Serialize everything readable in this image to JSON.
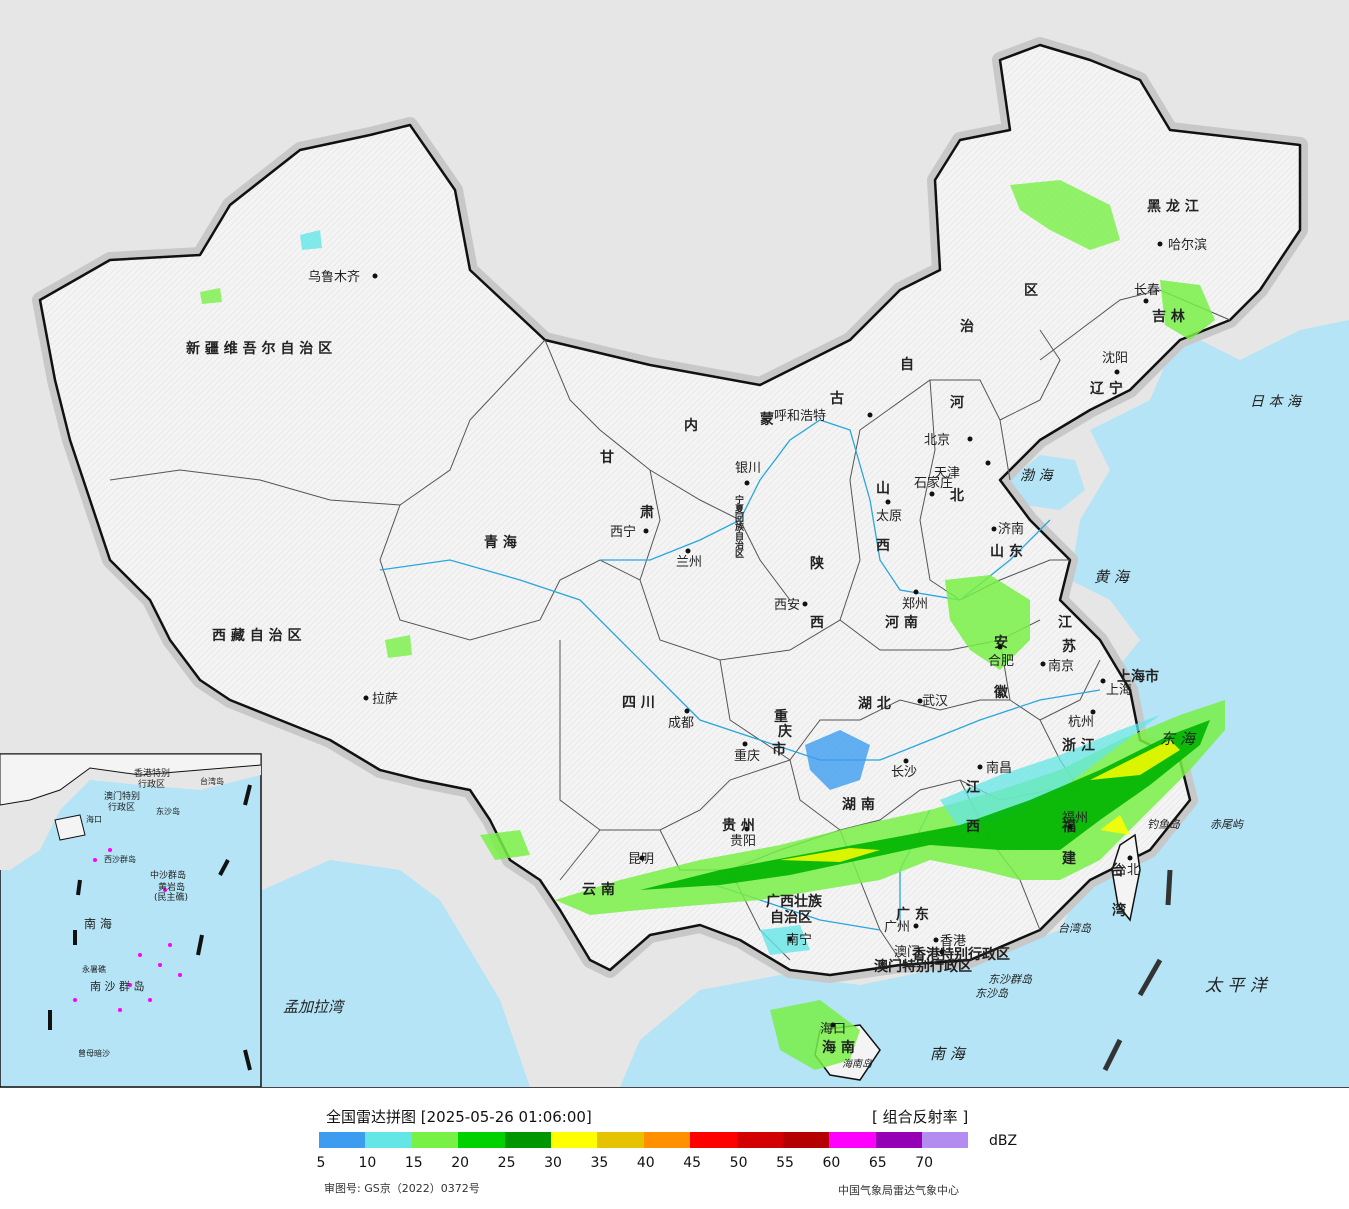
{
  "title": "全国雷达拼图 [2025-05-26 01:06:00]",
  "product": "[ 组合反射率 ]",
  "unit": "dBZ",
  "approval": "审图号: GS京（2022）0372号",
  "source": "中国气象局雷达气象中心",
  "colors": {
    "ocean": "#b4e4f5",
    "land_china": "#f4f4f4",
    "land_foreign": "#e6e6e6",
    "border": "#111111"
  },
  "scale": {
    "colors": [
      "#3c9cf0",
      "#64e6e6",
      "#78f046",
      "#00d200",
      "#009600",
      "#ffff00",
      "#e6c300",
      "#ff9100",
      "#ff0000",
      "#d20000",
      "#b40000",
      "#ff00ff",
      "#9600b4",
      "#b48cf0"
    ],
    "ticks": [
      "5",
      "10",
      "15",
      "20",
      "25",
      "30",
      "35",
      "40",
      "45",
      "50",
      "55",
      "60",
      "65",
      "70"
    ]
  },
  "provinces": [
    {
      "name": "新 疆 维 吾 尔 自 治 区"
    },
    {
      "name": "西 藏 自 治 区"
    },
    {
      "name": "青   海"
    },
    {
      "name": "甘"
    },
    {
      "name": "肃"
    },
    {
      "name": "内"
    },
    {
      "name": "蒙"
    },
    {
      "name": "古"
    },
    {
      "name": "自"
    },
    {
      "name": "治"
    },
    {
      "name": "区"
    },
    {
      "name": "黑 龙 江"
    },
    {
      "name": "吉  林"
    },
    {
      "name": "辽 宁"
    },
    {
      "name": "河"
    },
    {
      "name": "北"
    },
    {
      "name": "山"
    },
    {
      "name": "西"
    },
    {
      "name": "陕"
    },
    {
      "name": "西"
    },
    {
      "name": "山 东"
    },
    {
      "name": "河 南"
    },
    {
      "name": "江"
    },
    {
      "name": "苏"
    },
    {
      "name": "安"
    },
    {
      "name": "徽"
    },
    {
      "name": "上海市"
    },
    {
      "name": "浙 江"
    },
    {
      "name": "四   川"
    },
    {
      "name": "重"
    },
    {
      "name": "庆"
    },
    {
      "name": "市"
    },
    {
      "name": "湖  北"
    },
    {
      "name": "湖  南"
    },
    {
      "name": "江"
    },
    {
      "name": "西"
    },
    {
      "name": "福"
    },
    {
      "name": "建"
    },
    {
      "name": "贵  州"
    },
    {
      "name": "云  南"
    },
    {
      "name": "广西壮族"
    },
    {
      "name": "自治区"
    },
    {
      "name": "广  东"
    },
    {
      "name": "台"
    },
    {
      "name": "湾"
    },
    {
      "name": "海   南"
    },
    {
      "name": "宁夏回族自治区"
    },
    {
      "name": "香港特别行政区"
    },
    {
      "name": "澳门特别行政区"
    }
  ],
  "cities": [
    {
      "name": "乌鲁木齐"
    },
    {
      "name": "拉萨"
    },
    {
      "name": "西宁"
    },
    {
      "name": "兰州"
    },
    {
      "name": "银川"
    },
    {
      "name": "呼和浩特"
    },
    {
      "name": "北京"
    },
    {
      "name": "天津"
    },
    {
      "name": "石家庄"
    },
    {
      "name": "太原"
    },
    {
      "name": "济南"
    },
    {
      "name": "郑州"
    },
    {
      "name": "西安"
    },
    {
      "name": "成都"
    },
    {
      "name": "重庆"
    },
    {
      "name": "武汉"
    },
    {
      "name": "合肥"
    },
    {
      "name": "南京"
    },
    {
      "name": "上海"
    },
    {
      "name": "杭州"
    },
    {
      "name": "南昌"
    },
    {
      "name": "长沙"
    },
    {
      "name": "贵阳"
    },
    {
      "name": "昆明"
    },
    {
      "name": "南宁"
    },
    {
      "name": "广州"
    },
    {
      "name": "香港"
    },
    {
      "name": "澳门"
    },
    {
      "name": "海口"
    },
    {
      "name": "福州"
    },
    {
      "name": "台北"
    },
    {
      "name": "哈尔滨"
    },
    {
      "name": "长春"
    },
    {
      "name": "沈阳"
    }
  ],
  "seas": [
    {
      "name": "日 本 海"
    },
    {
      "name": "渤 海"
    },
    {
      "name": "黄  海"
    },
    {
      "name": "东  海"
    },
    {
      "name": "太  平  洋"
    },
    {
      "name": "南   海"
    },
    {
      "name": "孟加拉湾"
    },
    {
      "name": "台湾岛"
    },
    {
      "name": "钓鱼岛"
    },
    {
      "name": "赤尾屿"
    },
    {
      "name": "东沙群岛"
    },
    {
      "name": "东沙岛"
    },
    {
      "name": "海南岛"
    }
  ],
  "inset": {
    "labels": [
      "南  海",
      "中沙群岛",
      "黄岩岛",
      "(民主礁)",
      "南 沙 群 岛",
      "永暑礁",
      "曾母暗沙",
      "西沙群岛",
      "海口",
      "东沙岛",
      "台湾岛",
      "香港特别",
      "行政区",
      "澳门特别",
      "行政区"
    ]
  }
}
